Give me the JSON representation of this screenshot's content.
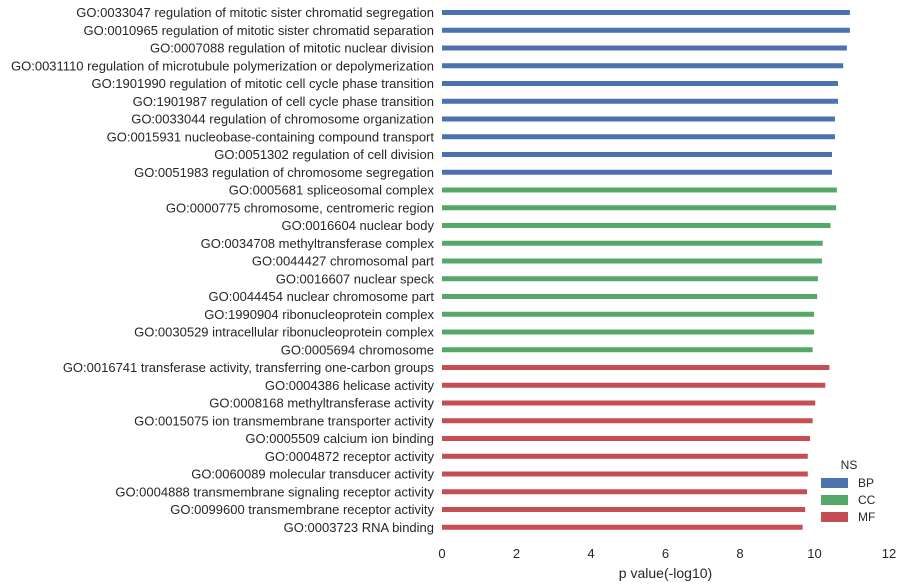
{
  "chart_data": {
    "type": "bar",
    "orientation": "horizontal",
    "xlabel": "p value(-log10)",
    "xlim": [
      0,
      12
    ],
    "xticks": [
      0,
      2,
      4,
      6,
      8,
      10,
      12
    ],
    "grid": false,
    "legend": {
      "title": "NS",
      "placement": "bottom-right",
      "entries": [
        {
          "name": "BP",
          "color": "#4c72b0"
        },
        {
          "name": "CC",
          "color": "#55a868"
        },
        {
          "name": "MF",
          "color": "#c44e52"
        }
      ]
    },
    "bars": [
      {
        "label": "GO:0033047 regulation of mitotic sister chromatid segregation",
        "value": 10.95,
        "ns": "BP"
      },
      {
        "label": "GO:0010965 regulation of mitotic sister chromatid separation",
        "value": 10.95,
        "ns": "BP"
      },
      {
        "label": "GO:0007088 regulation of mitotic nuclear division",
        "value": 10.87,
        "ns": "BP"
      },
      {
        "label": "GO:0031110 regulation of microtubule polymerization or depolymerization",
        "value": 10.77,
        "ns": "BP"
      },
      {
        "label": "GO:1901990 regulation of mitotic cell cycle phase transition",
        "value": 10.63,
        "ns": "BP"
      },
      {
        "label": "GO:1901987 regulation of cell cycle phase transition",
        "value": 10.63,
        "ns": "BP"
      },
      {
        "label": "GO:0033044 regulation of chromosome organization",
        "value": 10.55,
        "ns": "BP"
      },
      {
        "label": "GO:0015931 nucleobase-containing compound transport",
        "value": 10.55,
        "ns": "BP"
      },
      {
        "label": "GO:0051302 regulation of cell division",
        "value": 10.47,
        "ns": "BP"
      },
      {
        "label": "GO:0051983 regulation of chromosome segregation",
        "value": 10.47,
        "ns": "BP"
      },
      {
        "label": "GO:0005681 spliceosomal complex",
        "value": 10.6,
        "ns": "CC"
      },
      {
        "label": "GO:0000775 chromosome, centromeric region",
        "value": 10.58,
        "ns": "CC"
      },
      {
        "label": "GO:0016604 nuclear body",
        "value": 10.43,
        "ns": "CC"
      },
      {
        "label": "GO:0034708 methyltransferase complex",
        "value": 10.22,
        "ns": "CC"
      },
      {
        "label": "GO:0044427 chromosomal part",
        "value": 10.2,
        "ns": "CC"
      },
      {
        "label": "GO:0016607 nuclear speck",
        "value": 10.09,
        "ns": "CC"
      },
      {
        "label": "GO:0044454 nuclear chromosome part",
        "value": 10.07,
        "ns": "CC"
      },
      {
        "label": "GO:1990904 ribonucleoprotein complex",
        "value": 9.99,
        "ns": "CC"
      },
      {
        "label": "GO:0030529 intracellular ribonucleoprotein complex",
        "value": 9.99,
        "ns": "CC"
      },
      {
        "label": "GO:0005694 chromosome",
        "value": 9.95,
        "ns": "CC"
      },
      {
        "label": "GO:0016741 transferase activity, transferring one-carbon groups",
        "value": 10.4,
        "ns": "MF"
      },
      {
        "label": "GO:0004386 helicase activity",
        "value": 10.29,
        "ns": "MF"
      },
      {
        "label": "GO:0008168 methyltransferase activity",
        "value": 10.02,
        "ns": "MF"
      },
      {
        "label": "GO:0015075 ion transmembrane transporter activity",
        "value": 9.95,
        "ns": "MF"
      },
      {
        "label": "GO:0005509 calcium ion binding",
        "value": 9.88,
        "ns": "MF"
      },
      {
        "label": "GO:0004872 receptor activity",
        "value": 9.82,
        "ns": "MF"
      },
      {
        "label": "GO:0060089 molecular transducer activity",
        "value": 9.82,
        "ns": "MF"
      },
      {
        "label": "GO:0004888 transmembrane signaling receptor activity",
        "value": 9.8,
        "ns": "MF"
      },
      {
        "label": "GO:0099600 transmembrane receptor activity",
        "value": 9.75,
        "ns": "MF"
      },
      {
        "label": "GO:0003723 RNA binding",
        "value": 9.68,
        "ns": "MF"
      }
    ]
  }
}
